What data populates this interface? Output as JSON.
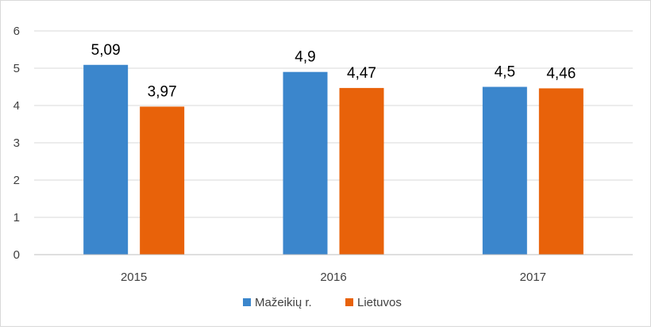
{
  "chart_data": {
    "type": "bar",
    "title": "",
    "xlabel": "",
    "ylabel": "",
    "categories": [
      "2015",
      "2016",
      "2017"
    ],
    "series": [
      {
        "name": "Mažeikių r.",
        "values": [
          5.09,
          4.9,
          4.5
        ],
        "labels": [
          "5,09",
          "4,9",
          "4,5"
        ],
        "color": "#3b86cc"
      },
      {
        "name": "Lietuvos",
        "values": [
          3.97,
          4.47,
          4.46
        ],
        "labels": [
          "3,97",
          "4,47",
          "4,46"
        ],
        "color": "#e8620a"
      }
    ],
    "ylim": [
      0,
      6
    ],
    "yticks": [
      "0",
      "1",
      "2",
      "3",
      "4",
      "5",
      "6"
    ],
    "grid": true,
    "legend_position": "bottom"
  }
}
